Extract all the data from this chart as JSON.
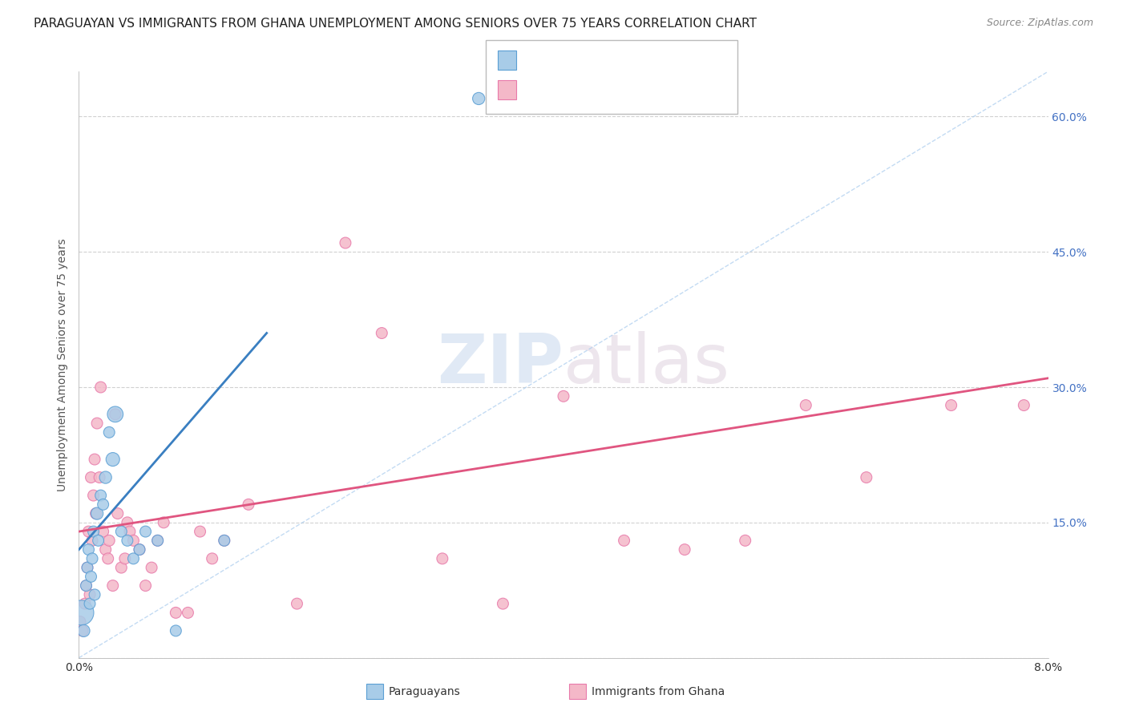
{
  "title": "PARAGUAYAN VS IMMIGRANTS FROM GHANA UNEMPLOYMENT AMONG SENIORS OVER 75 YEARS CORRELATION CHART",
  "source": "Source: ZipAtlas.com",
  "ylabel": "Unemployment Among Seniors over 75 years",
  "xlim": [
    0.0,
    8.0
  ],
  "ylim": [
    0.0,
    65.0
  ],
  "blue_label": "Paraguayans",
  "pink_label": "Immigrants from Ghana",
  "blue_color": "#a8cce8",
  "pink_color": "#f4b8c8",
  "blue_edge_color": "#5b9fd4",
  "pink_edge_color": "#e87aaa",
  "blue_line_color": "#3a7fc1",
  "pink_line_color": "#e05580",
  "watermark_zip": "ZIP",
  "watermark_atlas": "atlas",
  "background_color": "#ffffff",
  "title_fontsize": 11,
  "axis_label_fontsize": 10,
  "tick_fontsize": 10,
  "blue_scatter_x": [
    0.02,
    0.04,
    0.06,
    0.07,
    0.08,
    0.09,
    0.1,
    0.11,
    0.12,
    0.13,
    0.15,
    0.16,
    0.18,
    0.2,
    0.22,
    0.25,
    0.28,
    0.3,
    0.35,
    0.4,
    0.45,
    0.5,
    0.55,
    0.65,
    0.8,
    1.2,
    3.3
  ],
  "blue_scatter_y": [
    5,
    3,
    8,
    10,
    12,
    6,
    9,
    11,
    14,
    7,
    16,
    13,
    18,
    17,
    20,
    25,
    22,
    27,
    14,
    13,
    11,
    12,
    14,
    13,
    3,
    13,
    62
  ],
  "blue_scatter_size": [
    500,
    120,
    100,
    100,
    100,
    100,
    100,
    100,
    100,
    100,
    120,
    100,
    100,
    100,
    120,
    100,
    150,
    200,
    100,
    100,
    100,
    100,
    100,
    100,
    100,
    100,
    120
  ],
  "pink_scatter_x": [
    0.01,
    0.03,
    0.05,
    0.06,
    0.07,
    0.08,
    0.09,
    0.1,
    0.11,
    0.12,
    0.13,
    0.14,
    0.15,
    0.17,
    0.18,
    0.2,
    0.22,
    0.24,
    0.25,
    0.28,
    0.3,
    0.32,
    0.35,
    0.38,
    0.4,
    0.42,
    0.45,
    0.5,
    0.55,
    0.6,
    0.65,
    0.7,
    0.8,
    0.9,
    1.0,
    1.1,
    1.2,
    1.4,
    1.8,
    2.2,
    2.5,
    3.0,
    3.5,
    4.0,
    4.5,
    5.0,
    5.5,
    6.0,
    6.5,
    7.2,
    7.8
  ],
  "pink_scatter_y": [
    4,
    3,
    6,
    8,
    10,
    14,
    7,
    20,
    13,
    18,
    22,
    16,
    26,
    20,
    30,
    14,
    12,
    11,
    13,
    8,
    27,
    16,
    10,
    11,
    15,
    14,
    13,
    12,
    8,
    10,
    13,
    15,
    5,
    5,
    14,
    11,
    13,
    17,
    6,
    46,
    36,
    11,
    6,
    29,
    13,
    12,
    13,
    28,
    20,
    28,
    28
  ],
  "pink_scatter_size": [
    100,
    100,
    100,
    100,
    100,
    100,
    100,
    100,
    100,
    100,
    100,
    100,
    100,
    100,
    100,
    100,
    100,
    100,
    100,
    100,
    100,
    100,
    100,
    100,
    100,
    100,
    100,
    100,
    100,
    100,
    100,
    100,
    100,
    100,
    100,
    100,
    100,
    100,
    100,
    100,
    100,
    100,
    100,
    100,
    100,
    100,
    100,
    100,
    100,
    100,
    100
  ],
  "blue_trend_x": [
    0.0,
    1.55
  ],
  "blue_trend_y": [
    12.0,
    36.0
  ],
  "pink_trend_x": [
    0.0,
    8.0
  ],
  "pink_trend_y": [
    14.0,
    31.0
  ],
  "diag_line_x": [
    0.0,
    8.0
  ],
  "diag_line_y": [
    0.0,
    65.0
  ],
  "yticks": [
    0,
    15,
    30,
    45,
    60
  ],
  "yticklabels_right": [
    "",
    "15.0%",
    "30.0%",
    "45.0%",
    "60.0%"
  ],
  "xtick_vals": [
    0,
    1,
    2,
    3,
    4,
    5,
    6,
    7,
    8
  ]
}
